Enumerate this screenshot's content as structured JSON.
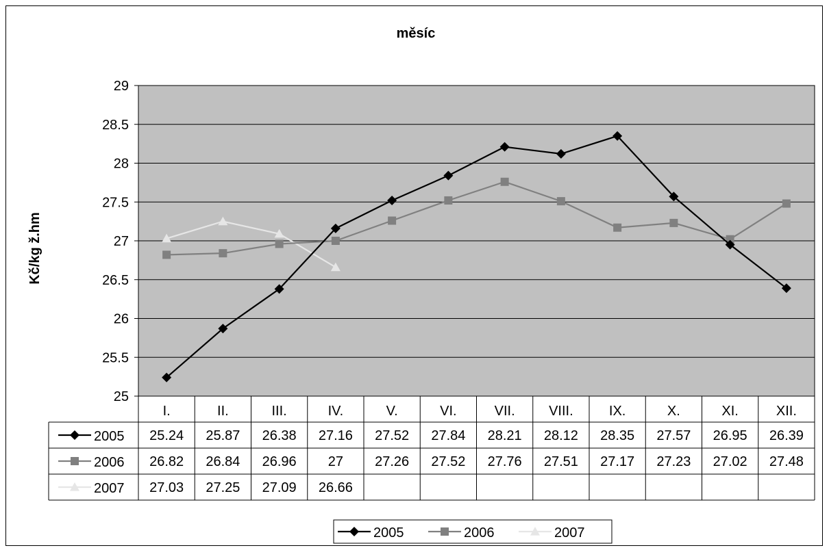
{
  "chart_data": {
    "type": "line",
    "title": "měsíc",
    "xlabel": "",
    "ylabel": "Kč/kg ž.hm",
    "ylim": [
      25,
      29
    ],
    "yticks": [
      "25",
      "25.5",
      "26",
      "26.5",
      "27",
      "27.5",
      "28",
      "28.5",
      "29"
    ],
    "grid": true,
    "legend_position": "bottom",
    "categories": [
      "I.",
      "II.",
      "III.",
      "IV.",
      "V.",
      "VI.",
      "VII.",
      "VIII.",
      "IX.",
      "X.",
      "XI.",
      "XII."
    ],
    "series": [
      {
        "name": "2005",
        "marker": "diamond",
        "color": "#000000",
        "values": [
          25.24,
          25.87,
          26.38,
          27.16,
          27.52,
          27.84,
          28.21,
          28.12,
          28.35,
          27.57,
          26.95,
          26.39
        ],
        "labels": [
          "25.24",
          "25.87",
          "26.38",
          "27.16",
          "27.52",
          "27.84",
          "28.21",
          "28.12",
          "28.35",
          "27.57",
          "26.95",
          "26.39"
        ]
      },
      {
        "name": "2006",
        "marker": "square",
        "color": "#808080",
        "values": [
          26.82,
          26.84,
          26.96,
          27,
          27.26,
          27.52,
          27.76,
          27.51,
          27.17,
          27.23,
          27.02,
          27.48
        ],
        "labels": [
          "26.82",
          "26.84",
          "26.96",
          "27",
          "27.26",
          "27.52",
          "27.76",
          "27.51",
          "27.17",
          "27.23",
          "27.02",
          "27.48"
        ]
      },
      {
        "name": "2007",
        "marker": "triangle",
        "color": "#e6e6e6",
        "values": [
          27.03,
          27.25,
          27.09,
          26.66,
          null,
          null,
          null,
          null,
          null,
          null,
          null,
          null
        ],
        "labels": [
          "27.03",
          "27.25",
          "27.09",
          "26.66",
          "",
          "",
          "",
          "",
          "",
          "",
          "",
          ""
        ]
      }
    ],
    "colors": {
      "plot_background": "#c0c0c0",
      "gridline": "#000000"
    }
  }
}
